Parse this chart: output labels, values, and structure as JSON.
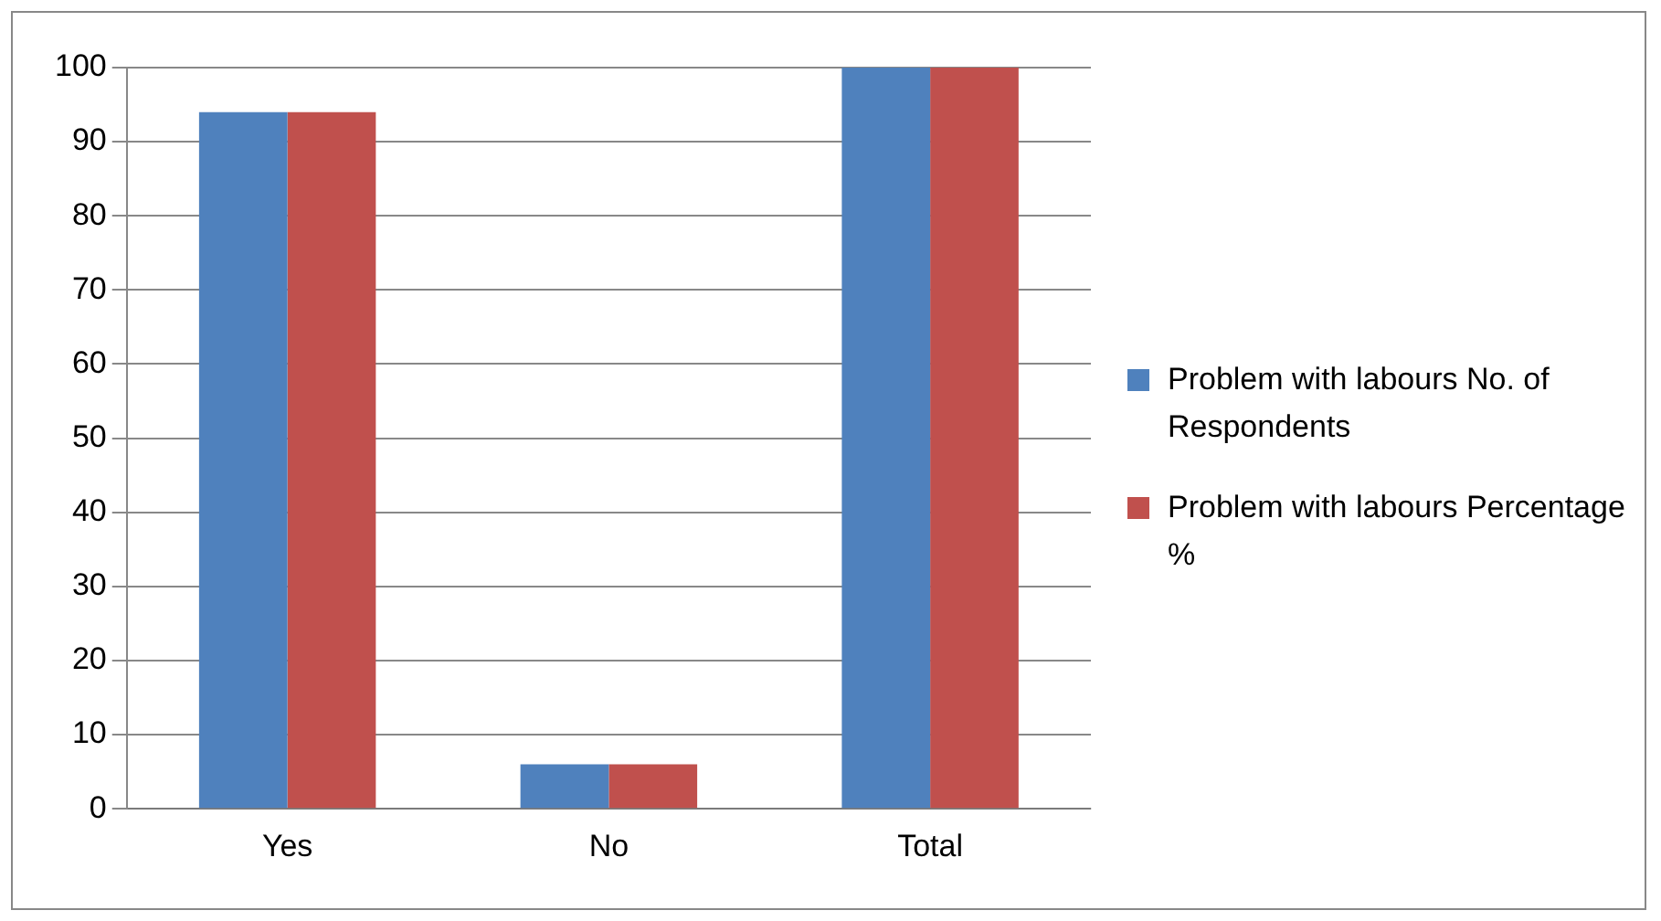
{
  "chart_data": {
    "type": "bar",
    "categories": [
      "Yes",
      "No",
      "Total"
    ],
    "series": [
      {
        "name": "Problem with labours No. of Respondents",
        "color": "#4f81bd",
        "values": [
          94,
          6,
          100
        ]
      },
      {
        "name": "Problem with labours Percentage %",
        "color": "#c0504d",
        "values": [
          94,
          6,
          100
        ]
      }
    ],
    "ylim": [
      0,
      100
    ],
    "yticks": [
      0,
      10,
      20,
      30,
      40,
      50,
      60,
      70,
      80,
      90,
      100
    ],
    "grid": "y",
    "legend": "right"
  }
}
